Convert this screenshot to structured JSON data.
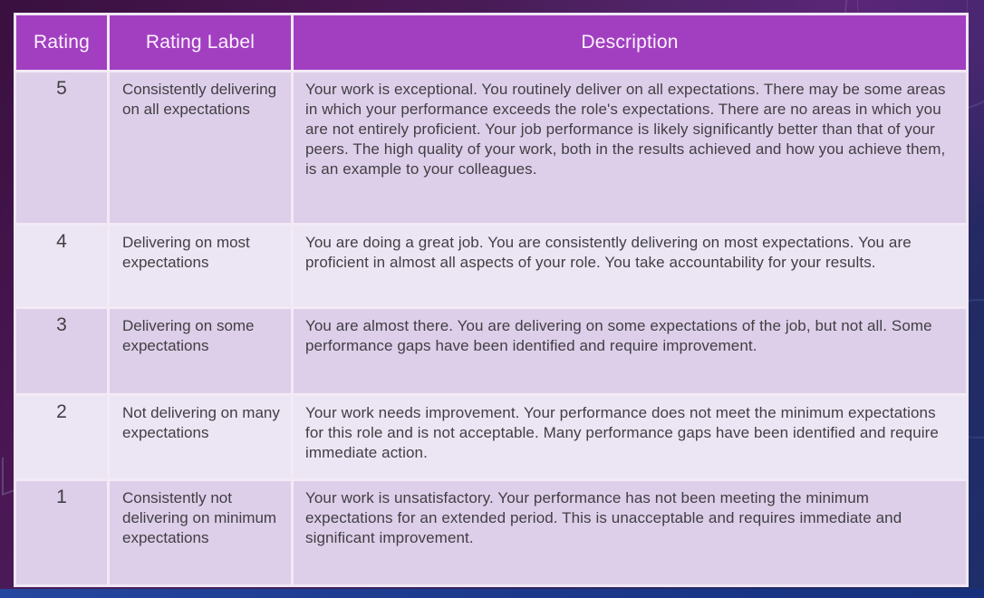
{
  "colors": {
    "header_background": "#a23fc1",
    "header_text": "#fdf3ff",
    "row_dark_lavender": "#ddcfe9",
    "row_light_lavender": "#ece6f4",
    "cell_text": "#413e44",
    "table_border": "#f0e7f4",
    "background_purple": "#4a1753",
    "background_navy": "#1d2e6a",
    "bottom_band_blue": "#1c3a8e"
  },
  "table": {
    "columns": [
      "Rating",
      "Rating Label",
      "Description"
    ],
    "rows": [
      {
        "rating": "5",
        "label": "Consistently delivering on all expectations",
        "description": "Your work is exceptional. You routinely deliver on all expectations. There may be some areas in which your performance exceeds the role's expectations. There are no areas in which you are not entirely proficient. Your job performance is likely significantly better than that of your peers. The high quality of your work, both in the results achieved and how you achieve them, is an example to your colleagues."
      },
      {
        "rating": "4",
        "label": "Delivering on most expectations",
        "description": "You are doing a great job.  You are consistently delivering on most expectations.  You are proficient in almost all aspects of your role.  You take accountability for your results."
      },
      {
        "rating": "3",
        "label": "Delivering on some expectations",
        "description": "You are almost there. You are delivering on some expectations of the job, but not all. Some performance gaps have been identified and require improvement."
      },
      {
        "rating": "2",
        "label": "Not delivering on many expectations",
        "description": "Your work needs improvement.  Your performance does not meet the minimum expectations for this role and is not acceptable. Many performance gaps have been identified and require immediate action."
      },
      {
        "rating": "1",
        "label": "Consistently not delivering on minimum expectations",
        "description": "Your work is unsatisfactory.  Your performance has not been meeting the minimum expectations for an extended period.  This is unacceptable and requires immediate and significant improvement."
      }
    ]
  }
}
